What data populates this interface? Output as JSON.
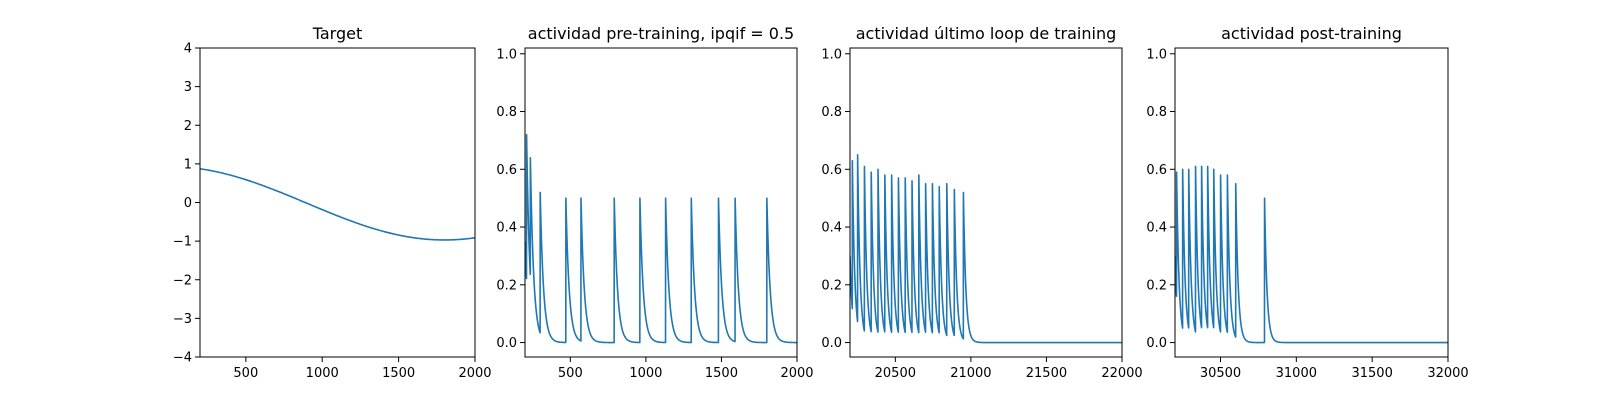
{
  "chart_data": [
    {
      "type": "line",
      "title": "Target",
      "xlim": [
        200,
        2000
      ],
      "ylim": [
        -4,
        4
      ],
      "xticks": [
        500,
        1000,
        1500,
        2000
      ],
      "yticks": [
        -4,
        -3,
        -2,
        -1,
        0,
        1,
        2,
        3,
        4
      ],
      "color": "#1f77b4",
      "signal": {
        "kind": "cosine",
        "x0": 200,
        "x1": 2000,
        "amplitude": 0.95,
        "period": 3600,
        "phase": 200,
        "offset": -0.02
      },
      "series": [
        {
          "x": [
            200,
            500,
            750,
            1000,
            1250,
            1500,
            1750,
            2000
          ],
          "values": [
            0.9,
            0.6,
            0.25,
            -0.05,
            -0.35,
            -0.65,
            -0.88,
            -0.97
          ]
        }
      ]
    },
    {
      "type": "line",
      "title": "actividad pre-training, ipqif = 0.5",
      "xlim": [
        200,
        2000
      ],
      "ylim": [
        -0.05,
        1.02
      ],
      "xticks": [
        500,
        1000,
        1500,
        2000
      ],
      "yticks": [
        0.0,
        0.2,
        0.4,
        0.6,
        0.8,
        1.0
      ],
      "color": "#1f77b4",
      "signal": {
        "kind": "spikes",
        "x0": 200,
        "x1": 2000,
        "start_level": 0.35,
        "tau": 22,
        "spikes": [
          [
            210,
            0.72
          ],
          [
            235,
            0.64
          ],
          [
            300,
            0.52
          ],
          [
            470,
            0.5
          ],
          [
            570,
            0.5
          ],
          [
            790,
            0.5
          ],
          [
            960,
            0.5
          ],
          [
            1130,
            0.5
          ],
          [
            1300,
            0.5
          ],
          [
            1480,
            0.5
          ],
          [
            1590,
            0.5
          ],
          [
            1800,
            0.5
          ]
        ]
      }
    },
    {
      "type": "line",
      "title": "actividad último loop de training",
      "xlim": [
        20200,
        22000
      ],
      "ylim": [
        -0.05,
        1.02
      ],
      "xticks": [
        20500,
        21000,
        21500,
        22000
      ],
      "yticks": [
        0.0,
        0.2,
        0.4,
        0.6,
        0.8,
        1.0
      ],
      "color": "#1f77b4",
      "signal": {
        "kind": "spikes",
        "x0": 20200,
        "x1": 22000,
        "start_level": 0.3,
        "tau": 16,
        "spikes": [
          [
            20215,
            0.63
          ],
          [
            20250,
            0.65
          ],
          [
            20295,
            0.61
          ],
          [
            20340,
            0.59
          ],
          [
            20385,
            0.6
          ],
          [
            20430,
            0.58
          ],
          [
            20475,
            0.58
          ],
          [
            20520,
            0.57
          ],
          [
            20565,
            0.57
          ],
          [
            20610,
            0.56
          ],
          [
            20655,
            0.58
          ],
          [
            20700,
            0.55
          ],
          [
            20745,
            0.55
          ],
          [
            20790,
            0.54
          ],
          [
            20840,
            0.55
          ],
          [
            20890,
            0.53
          ],
          [
            20950,
            0.52
          ]
        ]
      }
    },
    {
      "type": "line",
      "title": "actividad post-training",
      "xlim": [
        30200,
        32000
      ],
      "ylim": [
        -0.05,
        1.02
      ],
      "xticks": [
        30500,
        31000,
        31500,
        32000
      ],
      "yticks": [
        0.0,
        0.2,
        0.4,
        0.6,
        0.8,
        1.0
      ],
      "color": "#1f77b4",
      "signal": {
        "kind": "spikes",
        "x0": 30200,
        "x1": 32000,
        "start_level": 0.3,
        "tau": 16,
        "spikes": [
          [
            30210,
            0.59
          ],
          [
            30250,
            0.6
          ],
          [
            30290,
            0.6
          ],
          [
            30335,
            0.61
          ],
          [
            30375,
            0.61
          ],
          [
            30415,
            0.61
          ],
          [
            30455,
            0.6
          ],
          [
            30500,
            0.58
          ],
          [
            30545,
            0.58
          ],
          [
            30600,
            0.55
          ],
          [
            30790,
            0.5
          ]
        ]
      }
    }
  ]
}
